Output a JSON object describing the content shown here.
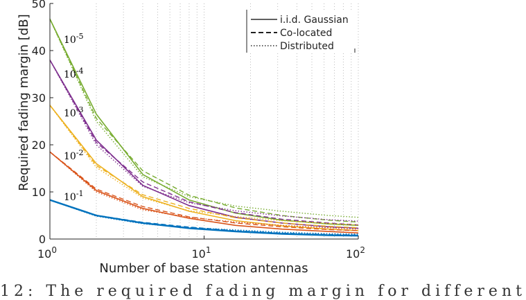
{
  "chart_data": {
    "type": "line",
    "xlabel": "Number of base station antennas",
    "ylabel": "Required fading margin [dB]",
    "xscale": "log",
    "xlim": [
      1,
      100
    ],
    "ylim": [
      0,
      50
    ],
    "yticks": [
      0,
      10,
      20,
      30,
      40,
      50
    ],
    "xticks": [
      {
        "value": 1,
        "base": "10",
        "exp": "0"
      },
      {
        "value": 10,
        "base": "10",
        "exp": "1"
      },
      {
        "value": 100,
        "base": "10",
        "exp": "2"
      }
    ],
    "grid": "x-minor dotted",
    "legend": {
      "position": "top-right",
      "entries": [
        {
          "label": "i.i.d. Gaussian",
          "style": "solid"
        },
        {
          "label": "Co-located",
          "style": "dashed"
        },
        {
          "label": "Distributed",
          "style": "dotted"
        }
      ]
    },
    "x": [
      1,
      2,
      4,
      8,
      16,
      32,
      64,
      100
    ],
    "groups": [
      {
        "annotation": {
          "base": "10",
          "exp": "-5"
        },
        "color": "#77ac30",
        "iid": [
          46.7,
          26.5,
          13.7,
          8.3,
          5.5,
          4.0,
          3.2,
          2.9
        ],
        "colocated": [
          46.7,
          25.6,
          14.5,
          9.3,
          6.6,
          5.0,
          4.0,
          3.6
        ],
        "distributed": [
          46.7,
          25.0,
          13.2,
          9.0,
          7.0,
          5.9,
          5.0,
          4.6
        ]
      },
      {
        "annotation": {
          "base": "10",
          "exp": "-4"
        },
        "color": "#7e2f8e",
        "iid": [
          38.0,
          21.0,
          11.4,
          7.1,
          4.6,
          3.4,
          2.6,
          2.3
        ],
        "colocated": [
          38.0,
          20.5,
          12.1,
          7.9,
          5.6,
          4.2,
          3.4,
          3.0
        ],
        "distributed": [
          38.0,
          20.0,
          11.2,
          7.7,
          6.0,
          4.9,
          4.1,
          3.8
        ]
      },
      {
        "annotation": {
          "base": "10",
          "exp": "-3"
        },
        "color": "#edb120",
        "iid": [
          28.4,
          16.0,
          9.0,
          5.9,
          3.9,
          2.8,
          2.1,
          1.8
        ],
        "colocated": [
          28.4,
          15.6,
          9.4,
          6.5,
          4.5,
          3.4,
          2.7,
          2.4
        ],
        "distributed": [
          28.4,
          15.2,
          8.7,
          6.0,
          4.8,
          3.9,
          3.3,
          3.0
        ]
      },
      {
        "annotation": {
          "base": "10",
          "exp": "-2"
        },
        "color": "#d95319",
        "iid": [
          18.5,
          10.3,
          6.5,
          4.4,
          2.9,
          2.1,
          1.6,
          1.3
        ],
        "colocated": [
          18.5,
          10.6,
          6.9,
          4.7,
          3.4,
          2.6,
          2.0,
          1.8
        ],
        "distributed": [
          18.5,
          10.0,
          6.2,
          4.6,
          3.6,
          2.9,
          2.4,
          2.1
        ]
      },
      {
        "annotation": {
          "base": "10",
          "exp": "-1"
        },
        "color": "#0072bd",
        "iid": [
          8.3,
          5.0,
          3.4,
          2.3,
          1.6,
          1.1,
          0.8,
          0.7
        ],
        "colocated": [
          8.3,
          5.0,
          3.5,
          2.5,
          1.7,
          1.2,
          0.9,
          0.8
        ],
        "distributed": [
          8.3,
          4.9,
          3.3,
          2.4,
          1.9,
          1.4,
          1.1,
          1.0
        ]
      }
    ]
  },
  "caption": "12: The required fading margin for different"
}
